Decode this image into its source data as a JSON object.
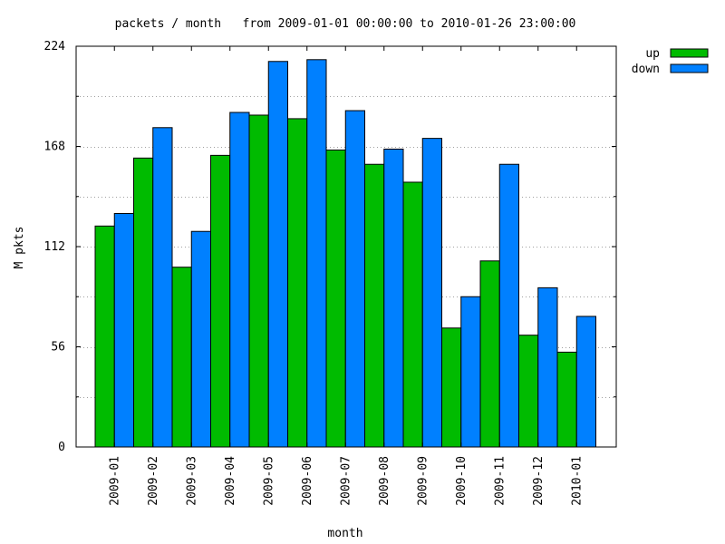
{
  "chart_data": {
    "type": "bar",
    "title": "packets / month   from 2009-01-01 00:00:00 to 2010-01-26 23:00:00",
    "xlabel": "month",
    "ylabel": "M pkts",
    "ylim": [
      0,
      224
    ],
    "yticks": [
      "0",
      "56",
      "112",
      "168",
      "224"
    ],
    "grid": true,
    "legend": "top-right",
    "categories": [
      "2009-01",
      "2009-02",
      "2009-03",
      "2009-04",
      "2009-05",
      "2009-06",
      "2009-07",
      "2009-08",
      "2009-09",
      "2009-10",
      "2009-11",
      "2009-12",
      "2010-01"
    ],
    "series": [
      {
        "name": "up",
        "color": "#00bb00",
        "values": [
          123.5,
          161.5,
          100.5,
          163,
          185.5,
          183.5,
          166,
          158,
          148,
          66.5,
          104,
          62.5,
          53
        ]
      },
      {
        "name": "down",
        "color": "#0080ff",
        "values": [
          130.5,
          178.5,
          120.5,
          187,
          215.5,
          216.5,
          188,
          166.5,
          172.5,
          84,
          158,
          89,
          73
        ]
      }
    ]
  }
}
